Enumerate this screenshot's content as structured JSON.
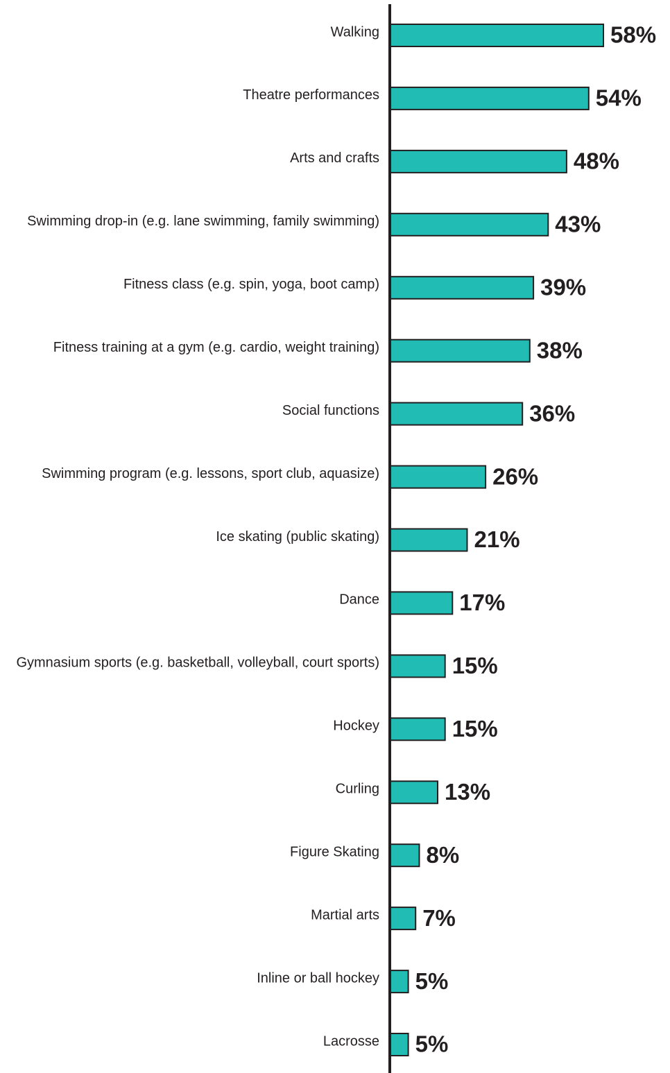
{
  "chart_data": {
    "type": "bar",
    "orientation": "horizontal",
    "categories": [
      "Walking",
      "Theatre performances",
      "Arts and crafts",
      "Swimming drop-in (e.g. lane swimming, family swimming)",
      "Fitness class (e.g. spin, yoga, boot camp)",
      "Fitness training at a gym (e.g. cardio, weight training)",
      "Social functions",
      "Swimming program (e.g. lessons, sport club, aquasize)",
      "Ice skating (public skating)",
      "Dance",
      "Gymnasium sports (e.g. basketball, volleyball, court sports)",
      "Hockey",
      "Curling",
      "Figure Skating",
      "Martial arts",
      "Inline or ball hockey",
      "Lacrosse"
    ],
    "values": [
      58,
      54,
      48,
      43,
      39,
      38,
      36,
      26,
      21,
      17,
      15,
      15,
      13,
      8,
      7,
      5,
      5
    ],
    "value_labels": [
      "58%",
      "54%",
      "48%",
      "43%",
      "39%",
      "38%",
      "36%",
      "26%",
      "21%",
      "17%",
      "15%",
      "15%",
      "13%",
      "8%",
      "7%",
      "5%",
      "5%"
    ],
    "unit": "%",
    "xlim": [
      0,
      58
    ],
    "title": "",
    "xlabel": "",
    "ylabel": "",
    "grid": false,
    "legend": "none",
    "colors": {
      "bar_fill": "#21bcb4",
      "bar_stroke": "#231f20",
      "axis": "#231f20",
      "text": "#231f20"
    }
  }
}
